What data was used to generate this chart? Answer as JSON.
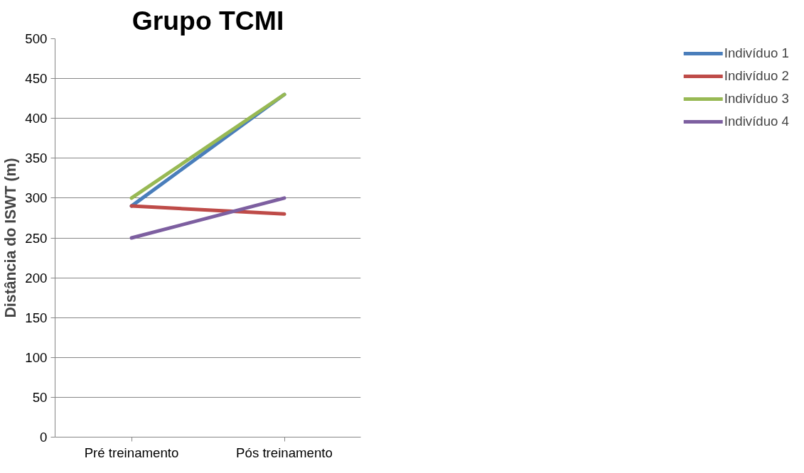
{
  "chart_data": {
    "type": "line",
    "title": "Grupo TCMI",
    "ylabel": "Distância do ISWT (m)",
    "categories": [
      "Pré treinamento",
      "Pós treinamento"
    ],
    "series": [
      {
        "name": "Indivíduo 1",
        "color": "#4a7ebb",
        "values": [
          290,
          430
        ]
      },
      {
        "name": "Indivíduo 2",
        "color": "#be4b48",
        "values": [
          290,
          280
        ]
      },
      {
        "name": "Indivíduo 3",
        "color": "#98b954",
        "values": [
          300,
          430
        ]
      },
      {
        "name": "Indivíduo 4",
        "color": "#7d5fa0",
        "values": [
          250,
          300
        ]
      }
    ],
    "ylim": [
      0,
      500
    ],
    "yticks": [
      0,
      50,
      100,
      150,
      200,
      250,
      300,
      350,
      400,
      450,
      500
    ],
    "grid": "y",
    "legend": "right",
    "marker": "none",
    "line_style": "solid"
  }
}
